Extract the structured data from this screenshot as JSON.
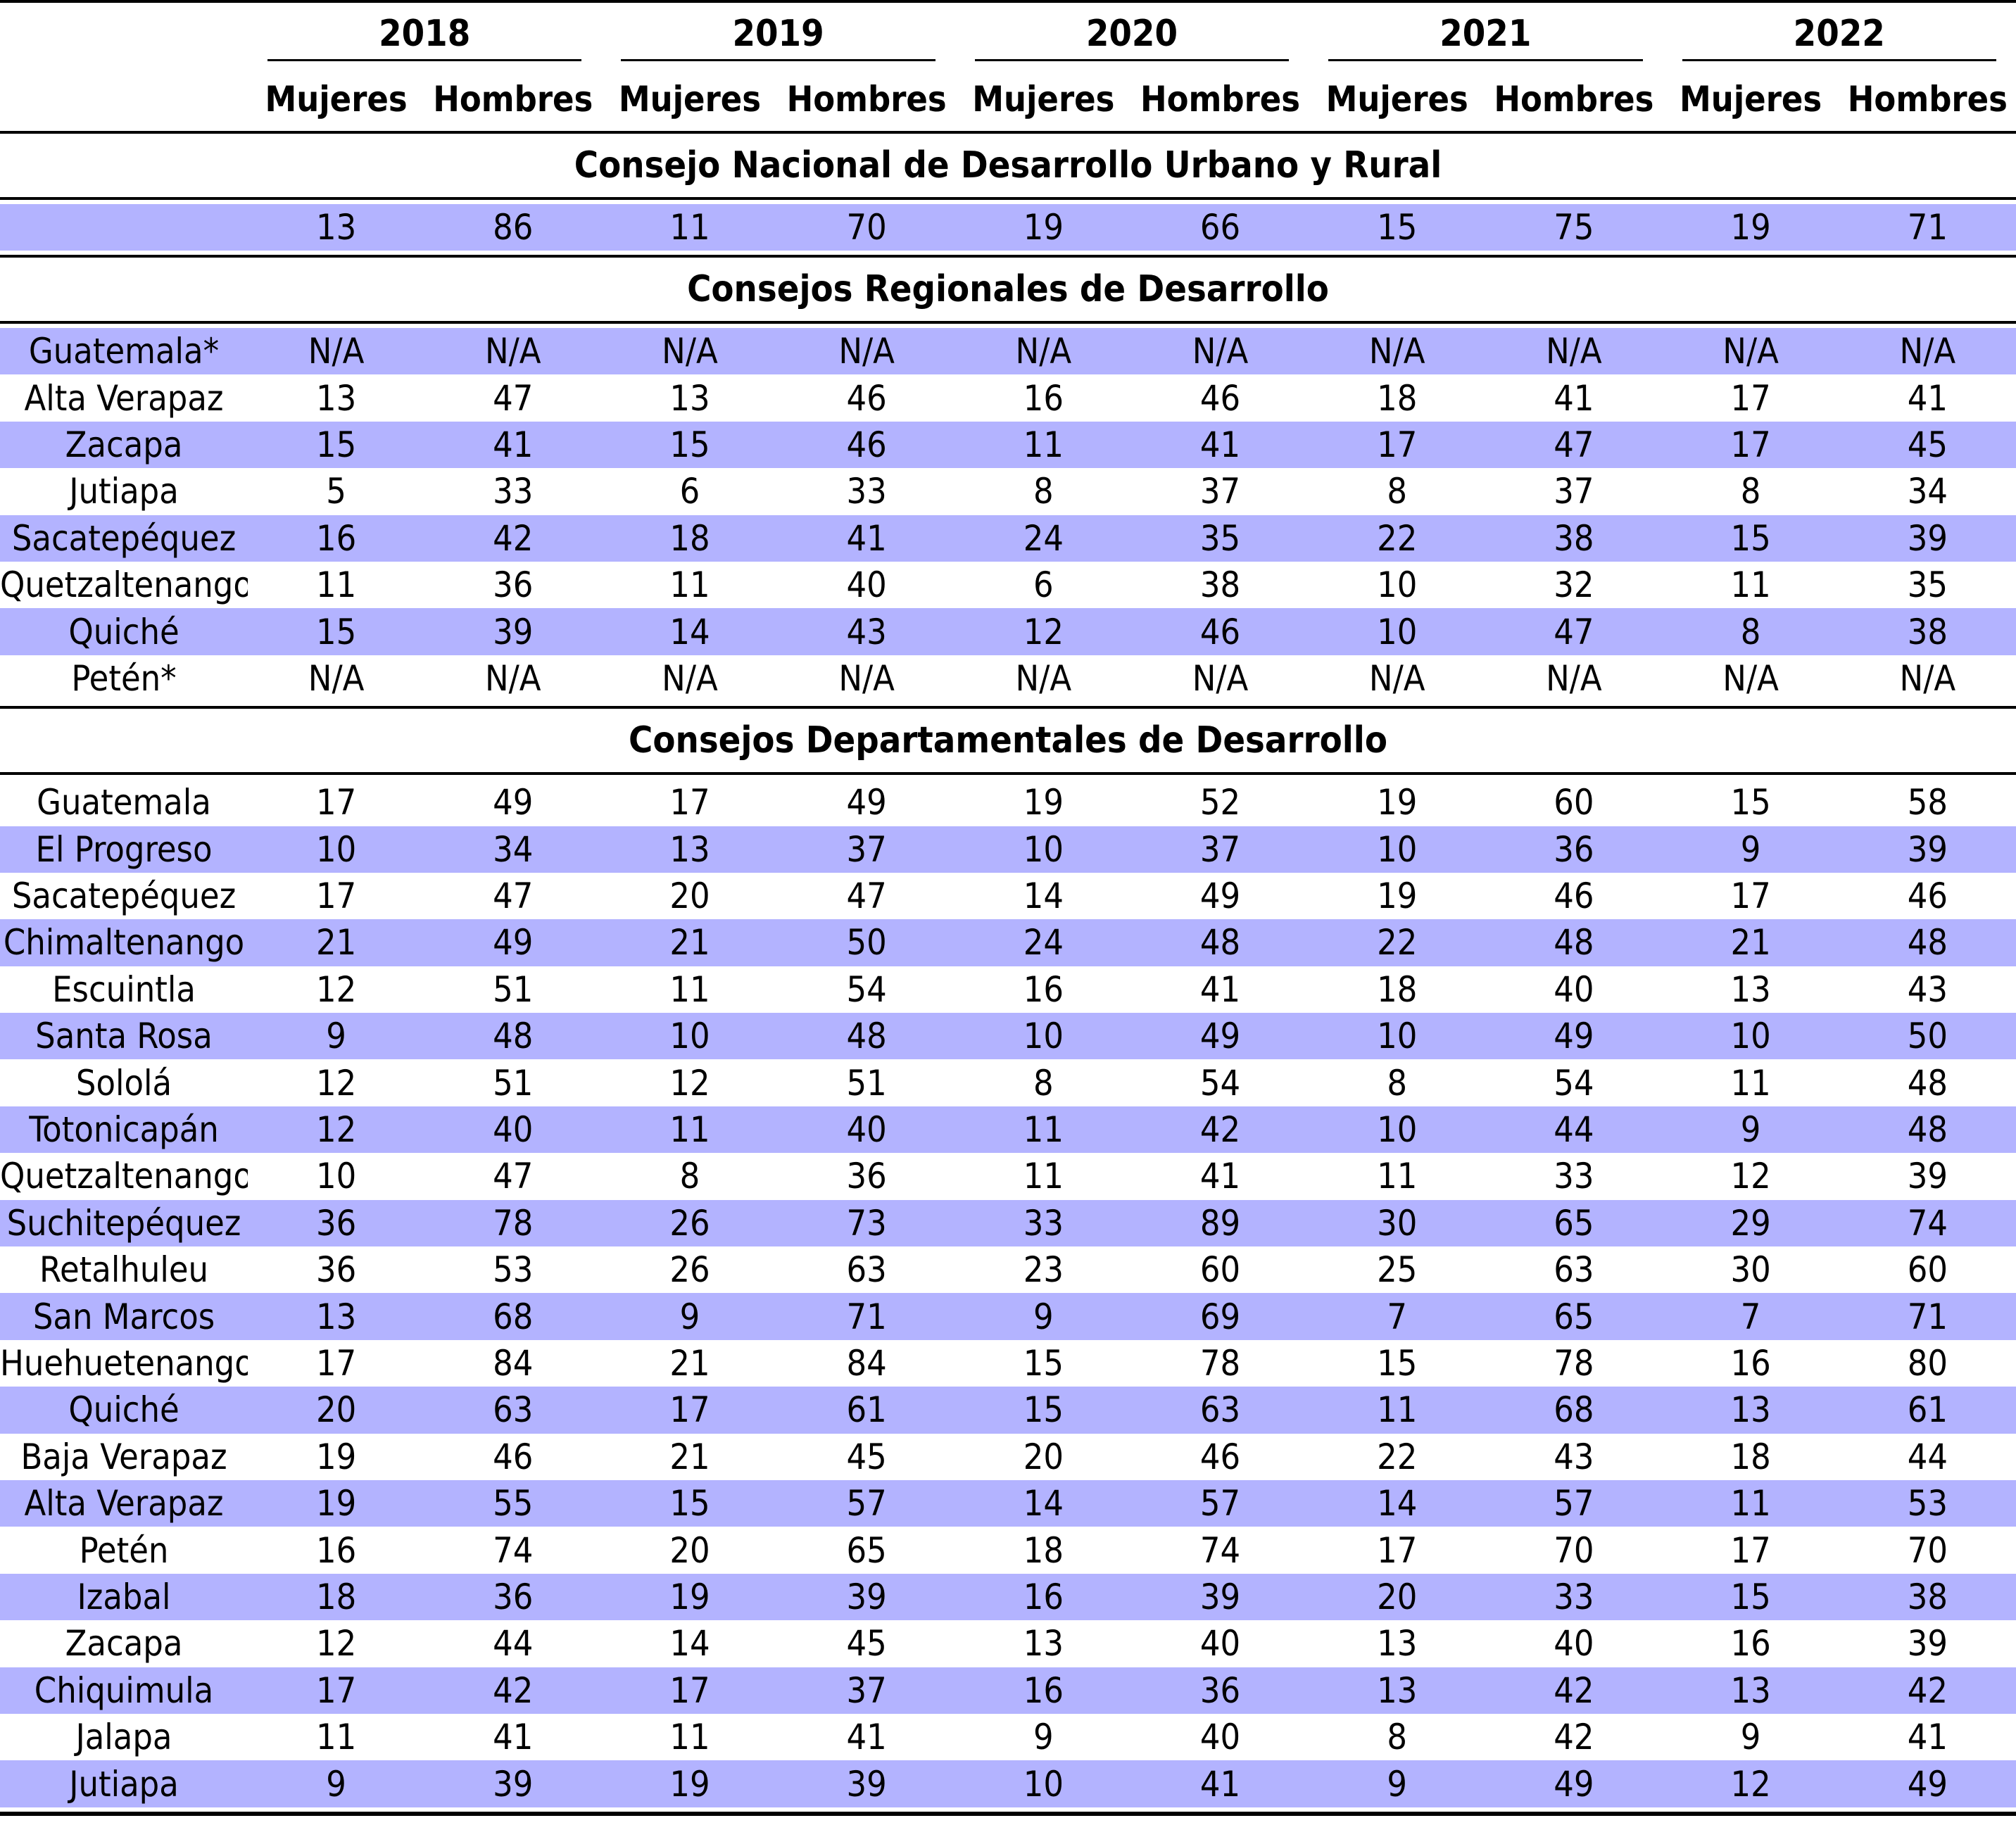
{
  "years": [
    "2018",
    "2019",
    "2020",
    "2021",
    "2022"
  ],
  "sub_headers": [
    "Mujeres",
    "Hombres"
  ],
  "national": {
    "title": "Consejo Nacional de Desarrollo Urbano y Rural",
    "rows": [
      {
        "name": "",
        "values": [
          "13",
          "86",
          "11",
          "70",
          "19",
          "66",
          "15",
          "75",
          "19",
          "71"
        ]
      }
    ]
  },
  "regional": {
    "title": "Consejos Regionales de Desarrollo",
    "rows": [
      {
        "name": "Guatemala*",
        "values": [
          "N/A",
          "N/A",
          "N/A",
          "N/A",
          "N/A",
          "N/A",
          "N/A",
          "N/A",
          "N/A",
          "N/A"
        ]
      },
      {
        "name": "Alta Verapaz",
        "values": [
          "13",
          "47",
          "13",
          "46",
          "16",
          "46",
          "18",
          "41",
          "17",
          "41"
        ]
      },
      {
        "name": "Zacapa",
        "values": [
          "15",
          "41",
          "15",
          "46",
          "11",
          "41",
          "17",
          "47",
          "17",
          "45"
        ]
      },
      {
        "name": "Jutiapa",
        "values": [
          "5",
          "33",
          "6",
          "33",
          "8",
          "37",
          "8",
          "37",
          "8",
          "34"
        ]
      },
      {
        "name": "Sacatepéquez",
        "values": [
          "16",
          "42",
          "18",
          "41",
          "24",
          "35",
          "22",
          "38",
          "15",
          "39"
        ]
      },
      {
        "name": "Quetzaltenango",
        "values": [
          "11",
          "36",
          "11",
          "40",
          "6",
          "38",
          "10",
          "32",
          "11",
          "35"
        ]
      },
      {
        "name": "Quiché",
        "values": [
          "15",
          "39",
          "14",
          "43",
          "12",
          "46",
          "10",
          "47",
          "8",
          "38"
        ]
      },
      {
        "name": "Petén*",
        "values": [
          "N/A",
          "N/A",
          "N/A",
          "N/A",
          "N/A",
          "N/A",
          "N/A",
          "N/A",
          "N/A",
          "N/A"
        ]
      }
    ]
  },
  "departmental": {
    "title": "Consejos Departamentales de Desarrollo",
    "rows": [
      {
        "name": "Guatemala",
        "values": [
          "17",
          "49",
          "17",
          "49",
          "19",
          "52",
          "19",
          "60",
          "15",
          "58"
        ]
      },
      {
        "name": "El Progreso",
        "values": [
          "10",
          "34",
          "13",
          "37",
          "10",
          "37",
          "10",
          "36",
          "9",
          "39"
        ]
      },
      {
        "name": "Sacatepéquez",
        "values": [
          "17",
          "47",
          "20",
          "47",
          "14",
          "49",
          "19",
          "46",
          "17",
          "46"
        ]
      },
      {
        "name": "Chimaltenango",
        "values": [
          "21",
          "49",
          "21",
          "50",
          "24",
          "48",
          "22",
          "48",
          "21",
          "48"
        ]
      },
      {
        "name": "Escuintla",
        "values": [
          "12",
          "51",
          "11",
          "54",
          "16",
          "41",
          "18",
          "40",
          "13",
          "43"
        ]
      },
      {
        "name": "Santa Rosa",
        "values": [
          "9",
          "48",
          "10",
          "48",
          "10",
          "49",
          "10",
          "49",
          "10",
          "50"
        ]
      },
      {
        "name": "Sololá",
        "values": [
          "12",
          "51",
          "12",
          "51",
          "8",
          "54",
          "8",
          "54",
          "11",
          "48"
        ]
      },
      {
        "name": "Totonicapán",
        "values": [
          "12",
          "40",
          "11",
          "40",
          "11",
          "42",
          "10",
          "44",
          "9",
          "48"
        ]
      },
      {
        "name": "Quetzaltenango",
        "values": [
          "10",
          "47",
          "8",
          "36",
          "11",
          "41",
          "11",
          "33",
          "12",
          "39"
        ]
      },
      {
        "name": "Suchitepéquez",
        "values": [
          "36",
          "78",
          "26",
          "73",
          "33",
          "89",
          "30",
          "65",
          "29",
          "74"
        ]
      },
      {
        "name": "Retalhuleu",
        "values": [
          "36",
          "53",
          "26",
          "63",
          "23",
          "60",
          "25",
          "63",
          "30",
          "60"
        ]
      },
      {
        "name": "San Marcos",
        "values": [
          "13",
          "68",
          "9",
          "71",
          "9",
          "69",
          "7",
          "65",
          "7",
          "71"
        ]
      },
      {
        "name": "Huehuetenango",
        "values": [
          "17",
          "84",
          "21",
          "84",
          "15",
          "78",
          "15",
          "78",
          "16",
          "80"
        ]
      },
      {
        "name": "Quiché",
        "values": [
          "20",
          "63",
          "17",
          "61",
          "15",
          "63",
          "11",
          "68",
          "13",
          "61"
        ]
      },
      {
        "name": "Baja Verapaz",
        "values": [
          "19",
          "46",
          "21",
          "45",
          "20",
          "46",
          "22",
          "43",
          "18",
          "44"
        ]
      },
      {
        "name": "Alta Verapaz",
        "values": [
          "19",
          "55",
          "15",
          "57",
          "14",
          "57",
          "14",
          "57",
          "11",
          "53"
        ]
      },
      {
        "name": "Petén",
        "values": [
          "16",
          "74",
          "20",
          "65",
          "18",
          "74",
          "17",
          "70",
          "17",
          "70"
        ]
      },
      {
        "name": "Izabal",
        "values": [
          "18",
          "36",
          "19",
          "39",
          "16",
          "39",
          "20",
          "33",
          "15",
          "38"
        ]
      },
      {
        "name": "Zacapa",
        "values": [
          "12",
          "44",
          "14",
          "45",
          "13",
          "40",
          "13",
          "40",
          "16",
          "39"
        ]
      },
      {
        "name": "Chiquimula",
        "values": [
          "17",
          "42",
          "17",
          "37",
          "16",
          "36",
          "13",
          "42",
          "13",
          "42"
        ]
      },
      {
        "name": "Jalapa",
        "values": [
          "11",
          "41",
          "11",
          "41",
          "9",
          "40",
          "8",
          "42",
          "9",
          "41"
        ]
      },
      {
        "name": "Jutiapa",
        "values": [
          "9",
          "39",
          "19",
          "39",
          "10",
          "41",
          "9",
          "49",
          "12",
          "49"
        ]
      }
    ]
  },
  "colors": {
    "shade": "#b3b3ff",
    "rule": "#000000"
  }
}
